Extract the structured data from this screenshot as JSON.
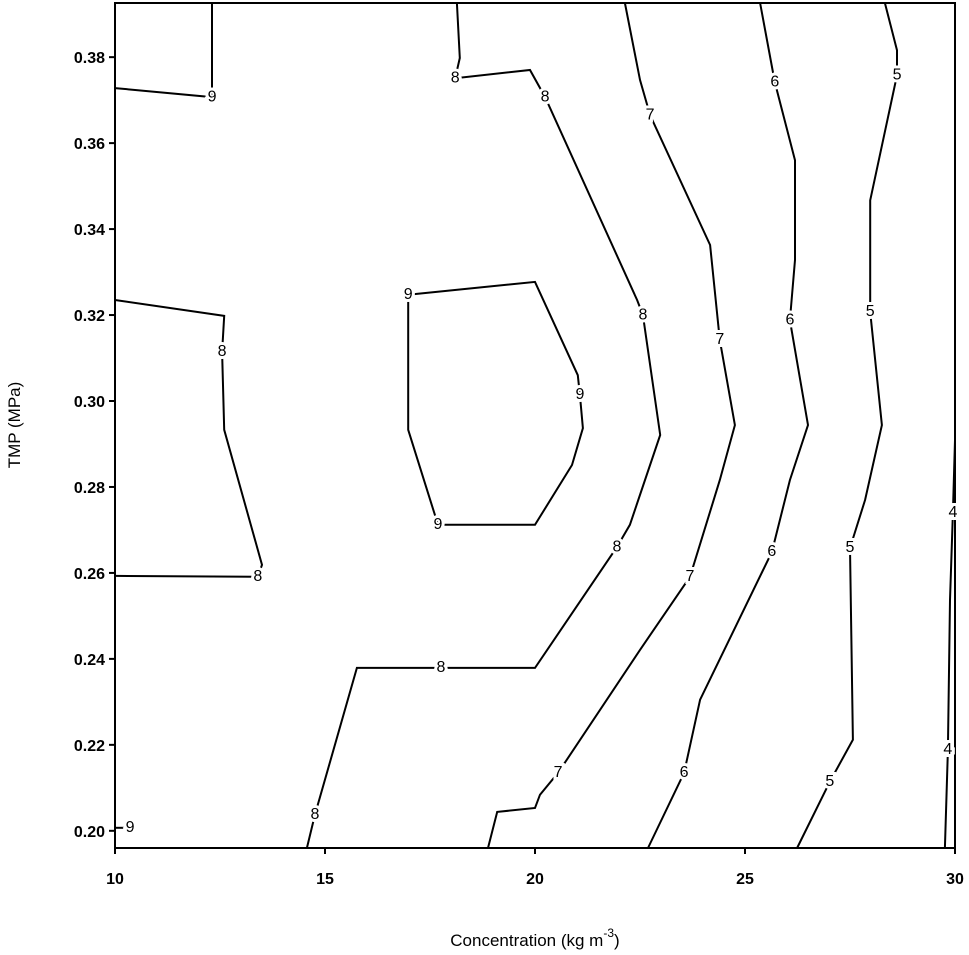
{
  "chart_data": {
    "type": "contour",
    "x_label": [
      "Concentration (kg m",
      "-3",
      ")"
    ],
    "y_label": "TMP (MPa)",
    "xlim": [
      10,
      30
    ],
    "ylim": [
      0.196,
      0.3926
    ],
    "xticks": [
      10,
      15,
      20,
      25,
      30
    ],
    "yticks": [
      {
        "value": 0.2,
        "label": "0.20"
      },
      {
        "value": 0.22,
        "label": "0.22"
      },
      {
        "value": 0.24,
        "label": "0.24"
      },
      {
        "value": 0.26,
        "label": "0.26"
      },
      {
        "value": 0.28,
        "label": "0.28"
      },
      {
        "value": 0.3,
        "label": "0.30"
      },
      {
        "value": 0.32,
        "label": "0.32"
      },
      {
        "value": 0.34,
        "label": "0.34"
      },
      {
        "value": 0.36,
        "label": "0.36"
      },
      {
        "value": 0.38,
        "label": "0.38"
      }
    ],
    "color": "#000000",
    "contours": [
      {
        "level": 9,
        "x": [
          12.31,
          12.31,
          10
        ],
        "y": [
          0.3926,
          0.3707,
          0.3728
        ]
      },
      {
        "level": 8,
        "x": [
          18.14,
          18.21,
          18.1,
          19.88,
          20.24,
          22.43,
          22.57,
          22.98,
          22.26,
          21.95,
          20.0,
          17.76,
          15.76,
          14.76,
          14.57
        ],
        "y": [
          0.3926,
          0.3798,
          0.3751,
          0.377,
          0.3707,
          0.3235,
          0.32,
          0.2921,
          0.2712,
          0.266,
          0.2379,
          0.2379,
          0.2379,
          0.2037,
          0.196
        ]
      },
      {
        "level": 8,
        "x": [
          10,
          12.6,
          12.55,
          12.6,
          13.5,
          13.4,
          10
        ],
        "y": [
          0.3235,
          0.3198,
          0.3114,
          0.2933,
          0.2619,
          0.2591,
          0.2593
        ]
      },
      {
        "level": 9,
        "x": [
          16.98,
          20,
          21.02,
          21.07,
          21.14,
          20.88,
          20,
          17.69,
          16.98,
          16.98
        ],
        "y": [
          0.3247,
          0.3277,
          0.306,
          0.3014,
          0.2937,
          0.2851,
          0.2712,
          0.2712,
          0.2933,
          0.3247
        ]
      },
      {
        "level": 7,
        "x": [
          22.14,
          22.5,
          22.74,
          24.17,
          24.4,
          24.76,
          24.4,
          23.69,
          22.5,
          20.55,
          20.12,
          20,
          19.1,
          18.88
        ],
        "y": [
          0.3926,
          0.3747,
          0.3665,
          0.3363,
          0.3142,
          0.2944,
          0.2816,
          0.2591,
          0.2421,
          0.2135,
          0.2084,
          0.2053,
          0.2044,
          0.196
        ]
      },
      {
        "level": 6,
        "x": [
          25.36,
          25.71,
          26.19,
          26.19,
          26.07,
          26.5,
          26.07,
          25.64,
          23.93,
          23.55,
          22.69
        ],
        "y": [
          0.3926,
          0.3742,
          0.356,
          0.3328,
          0.3188,
          0.2944,
          0.2816,
          0.2649,
          0.2305,
          0.2135,
          0.196
        ]
      },
      {
        "level": 5,
        "x": [
          28.33,
          28.62,
          28.62,
          27.98,
          27.98,
          28.26,
          27.86,
          27.5,
          27.57,
          27.02,
          26.24
        ],
        "y": [
          0.3926,
          0.3816,
          0.3758,
          0.3467,
          0.3207,
          0.2944,
          0.277,
          0.2658,
          0.2212,
          0.2114,
          0.196
        ]
      },
      {
        "level": 4,
        "x": [
          30,
          29.95,
          29.88,
          29.83,
          29.76
        ],
        "y": [
          0.2909,
          0.274,
          0.2537,
          0.2188,
          0.196
        ]
      },
      {
        "level": 9,
        "x": [
          10,
          10.36
        ],
        "y": [
          0.2007,
          0.2007
        ]
      }
    ]
  }
}
